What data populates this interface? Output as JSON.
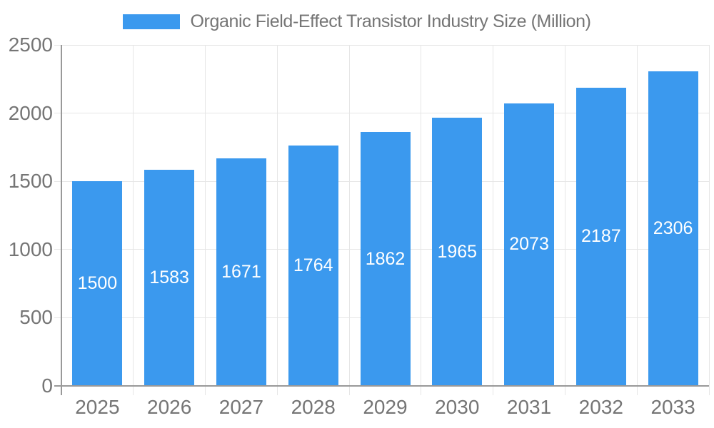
{
  "chart_data": {
    "type": "bar",
    "title": "Organic Field-Effect Transistor Industry Size (Million)",
    "categories": [
      "2025",
      "2026",
      "2027",
      "2028",
      "2029",
      "2030",
      "2031",
      "2032",
      "2033"
    ],
    "values": [
      1500,
      1583,
      1671,
      1764,
      1862,
      1965,
      2073,
      2187,
      2306
    ],
    "xlabel": "",
    "ylabel": "",
    "ylim": [
      0,
      2500
    ],
    "yticks": [
      0,
      500,
      1000,
      1500,
      2000,
      2500
    ],
    "grid": true,
    "legend_position": "top-center",
    "bar_value_labels": true,
    "colors": {
      "bar": "#3b99ee",
      "grid": "#e6e6e6",
      "axis": "#999999",
      "text": "#757575",
      "bar_label": "#ffffff",
      "background": "#ffffff"
    }
  }
}
